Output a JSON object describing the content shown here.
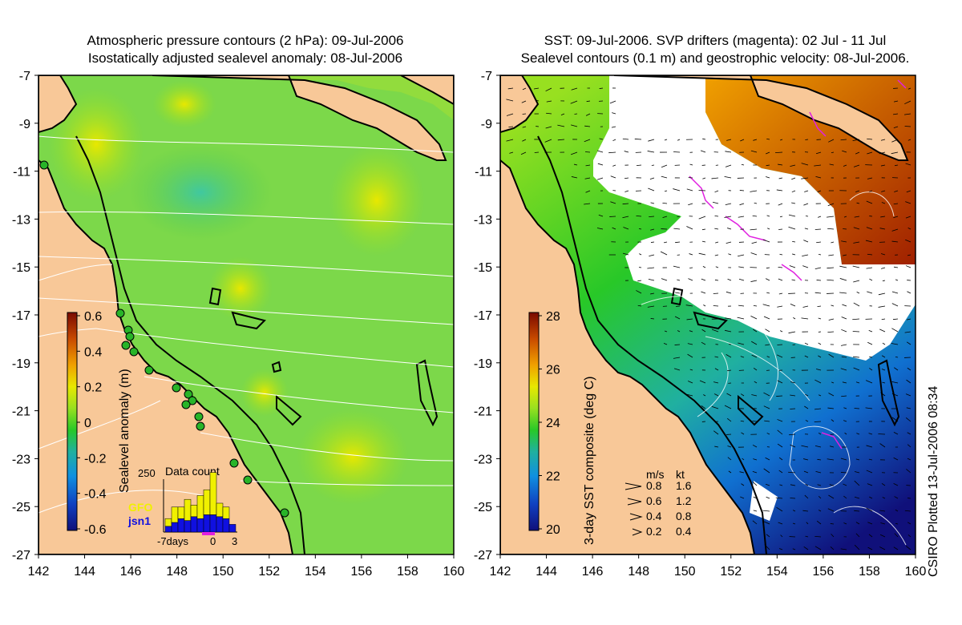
{
  "left_panel": {
    "title_line1": "Atmospheric pressure contours (2 hPa): 09-Jul-2006",
    "title_line2": "Isostatically adjusted sealevel anomaly: 08-Jul-2006",
    "y_ticks": [
      "-7",
      "-9",
      "-11",
      "-13",
      "-15",
      "-17",
      "-19",
      "-21",
      "-23",
      "-25",
      "-27"
    ],
    "x_ticks": [
      "142",
      "144",
      "146",
      "148",
      "150",
      "152",
      "154",
      "156",
      "158",
      "160"
    ],
    "colorbar": {
      "label": "Sealevel anomaly (m)",
      "ticks": [
        "0.6",
        "0.4",
        "0.2",
        "0",
        "-0.2",
        "-0.4",
        "-0.6"
      ],
      "colors": [
        "#7a0a00",
        "#c84a00",
        "#f0a000",
        "#e8e800",
        "#98e020",
        "#28c828",
        "#20b0a0",
        "#1090e0",
        "#1040c0",
        "#10107a"
      ]
    },
    "data_count": {
      "title": "Data count",
      "max_label": "250",
      "sat1": "GFO",
      "sat2": "jsn1",
      "x_label_left": "-7days",
      "x_label_mid": "0",
      "x_label_right": "3",
      "sat1_color": "#f0f000",
      "sat2_color": "#1010e0",
      "gfo_counts": [
        40,
        80,
        60,
        110,
        60,
        120,
        130,
        220,
        70,
        60,
        0
      ],
      "jsn1_counts": [
        30,
        50,
        70,
        60,
        80,
        70,
        90,
        90,
        80,
        70,
        40
      ]
    }
  },
  "right_panel": {
    "title_line1": "SST: 09-Jul-2006. SVP drifters (magenta): 02 Jul - 11 Jul",
    "title_line2": "Sealevel contours (0.1 m) and geostrophic velocity: 08-Jul-2006.",
    "y_ticks": [
      "-7",
      "-9",
      "-11",
      "-13",
      "-15",
      "-17",
      "-19",
      "-21",
      "-23",
      "-25",
      "-27"
    ],
    "x_ticks": [
      "142",
      "144",
      "146",
      "148",
      "150",
      "152",
      "154",
      "156",
      "158",
      "160"
    ],
    "colorbar": {
      "label": "3-day SST composite (deg C)",
      "ticks": [
        "28",
        "26",
        "24",
        "22",
        "20"
      ],
      "colors": [
        "#7a0a00",
        "#c84a00",
        "#f0a000",
        "#e8e800",
        "#98e020",
        "#28c828",
        "#20b0a0",
        "#1090e0",
        "#1040c0",
        "#10107a"
      ]
    },
    "velocity_legend": {
      "header_ms": "m/s",
      "header_kt": "kt",
      "rows": [
        {
          "ms": "0.8",
          "kt": "1.6"
        },
        {
          "ms": "0.6",
          "kt": "1.2"
        },
        {
          "ms": "0.4",
          "kt": "0.8"
        },
        {
          "ms": "0.2",
          "kt": "0.4"
        }
      ]
    }
  },
  "stamp": "CSIRO Plotted 13-Jul-2006 08:34",
  "colors": {
    "land": "#f8c898",
    "sea_green": "#7cd84a",
    "cloud": "#ffffff",
    "drifter": "#e020e0",
    "coast": "#000000"
  },
  "map_extent": {
    "lon": [
      142,
      160
    ],
    "lat": [
      -27,
      -7
    ]
  }
}
